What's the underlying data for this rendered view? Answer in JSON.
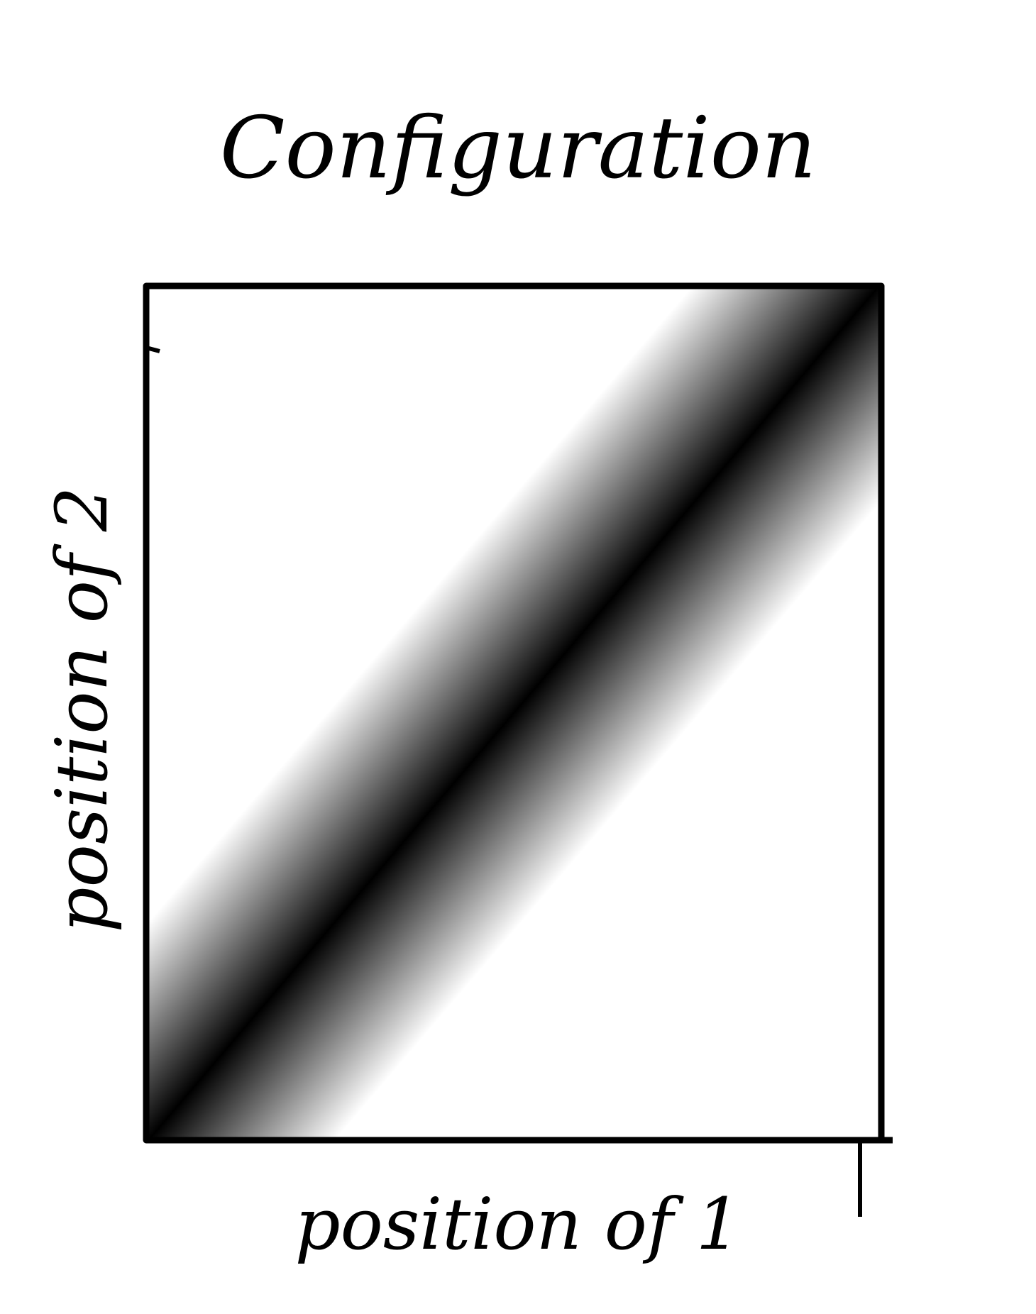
{
  "title": "Configuration",
  "axes": {
    "x_label": "position of 1",
    "y_label": "position of 2"
  }
}
